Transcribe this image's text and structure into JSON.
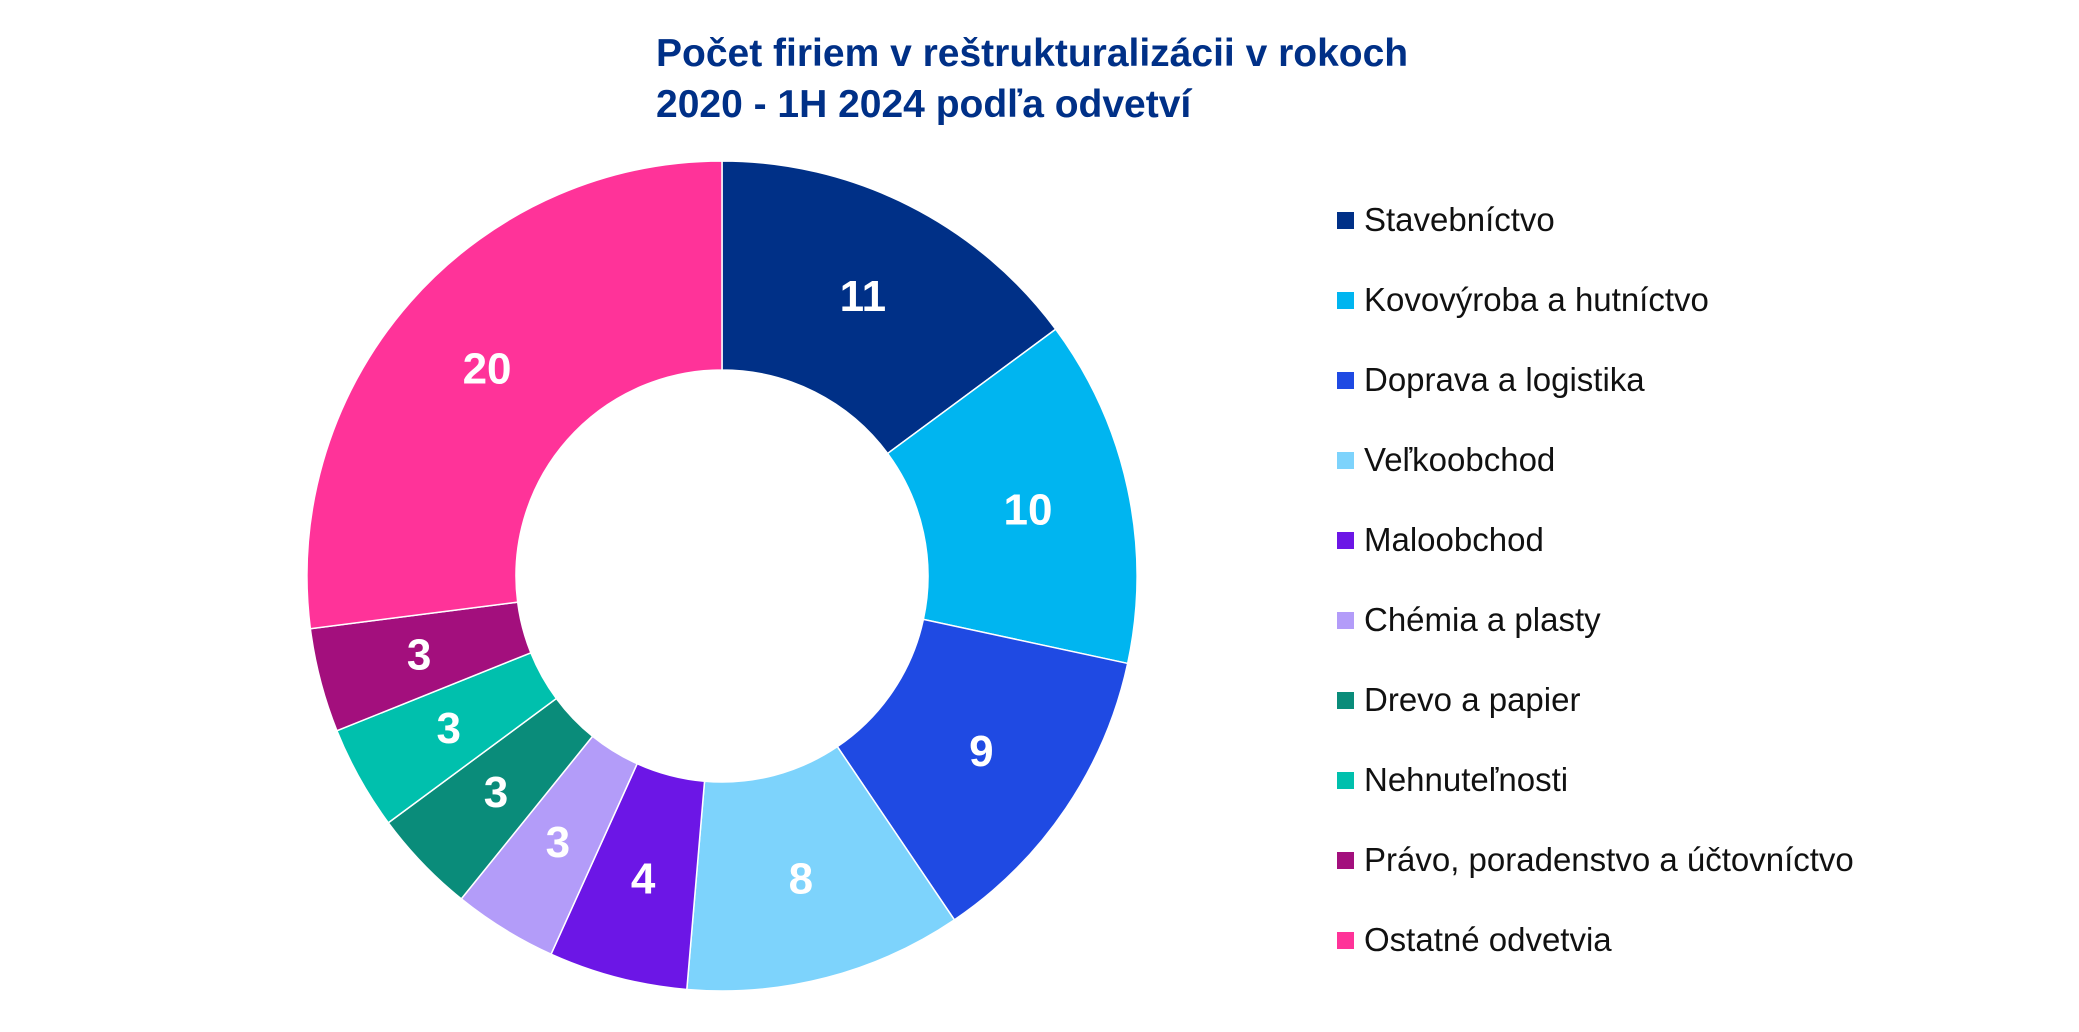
{
  "title": {
    "line1": "Počet firiem v reštrukturalizácii v rokoch",
    "line2": "2020 - 1H 2024 podľa odvetví"
  },
  "chart_data": {
    "type": "pie",
    "donut": true,
    "title": "Počet firiem v reštrukturalizácii v rokoch 2020 - 1H 2024 podľa odvetví",
    "legend_position": "right",
    "slices": [
      {
        "label": "Stavebníctvo",
        "value": 11,
        "color": "#003087"
      },
      {
        "label": "Kovovýroba a hutníctvo",
        "value": 10,
        "color": "#00b5f0"
      },
      {
        "label": "Doprava a logistika",
        "value": 9,
        "color": "#1f4ae3"
      },
      {
        "label": "Veľkoobchod",
        "value": 8,
        "color": "#7dd3fc"
      },
      {
        "label": "Maloobchod",
        "value": 4,
        "color": "#6c16e6"
      },
      {
        "label": "Chémia a plasty",
        "value": 3,
        "color": "#b39cf9"
      },
      {
        "label": "Drevo a papier",
        "value": 3,
        "color": "#0a8c7a"
      },
      {
        "label": "Nehnuteľnosti",
        "value": 3,
        "color": "#00c0ad"
      },
      {
        "label": "Právo, poradenstvo a účtovníctvo",
        "value": 3,
        "color": "#a30f7d"
      },
      {
        "label": "Ostatné odvetvia",
        "value": 20,
        "color": "#ff3399"
      }
    ]
  }
}
